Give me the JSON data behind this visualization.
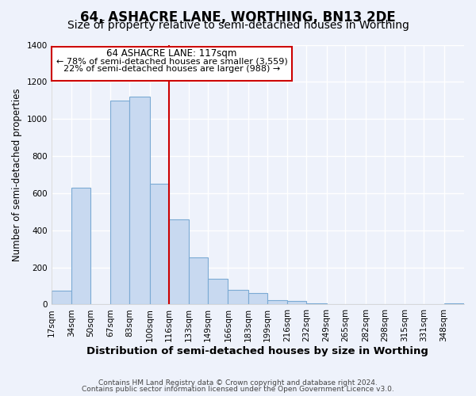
{
  "title": "64, ASHACRE LANE, WORTHING, BN13 2DE",
  "subtitle": "Size of property relative to semi-detached houses in Worthing",
  "xlabel": "Distribution of semi-detached houses by size in Worthing",
  "ylabel": "Number of semi-detached properties",
  "footer1": "Contains HM Land Registry data © Crown copyright and database right 2024.",
  "footer2": "Contains public sector information licensed under the Open Government Licence v3.0.",
  "property_label": "64 ASHACRE LANE: 117sqm",
  "annotation_line1": "← 78% of semi-detached houses are smaller (3,559)",
  "annotation_line2": "22% of semi-detached houses are larger (988) →",
  "bin_labels": [
    "17sqm",
    "34sqm",
    "50sqm",
    "67sqm",
    "83sqm",
    "100sqm",
    "116sqm",
    "133sqm",
    "149sqm",
    "166sqm",
    "183sqm",
    "199sqm",
    "216sqm",
    "232sqm",
    "249sqm",
    "265sqm",
    "282sqm",
    "298sqm",
    "315sqm",
    "331sqm",
    "348sqm"
  ],
  "bin_edges": [
    17,
    34,
    50,
    67,
    83,
    100,
    116,
    133,
    149,
    166,
    183,
    199,
    216,
    232,
    249,
    265,
    282,
    298,
    315,
    331,
    348,
    365
  ],
  "bar_values": [
    75,
    630,
    0,
    1100,
    1120,
    650,
    460,
    255,
    140,
    80,
    60,
    25,
    20,
    8,
    4,
    2,
    1,
    1,
    0,
    0,
    5
  ],
  "bar_color": "#c8d9f0",
  "bar_edge_color": "#7baad4",
  "property_line_x": 116,
  "annotation_box_color": "#cc0000",
  "ylim": [
    0,
    1400
  ],
  "yticks": [
    0,
    200,
    400,
    600,
    800,
    1000,
    1200,
    1400
  ],
  "bg_color": "#eef2fb",
  "grid_color": "#ffffff",
  "title_fontsize": 12,
  "subtitle_fontsize": 10
}
